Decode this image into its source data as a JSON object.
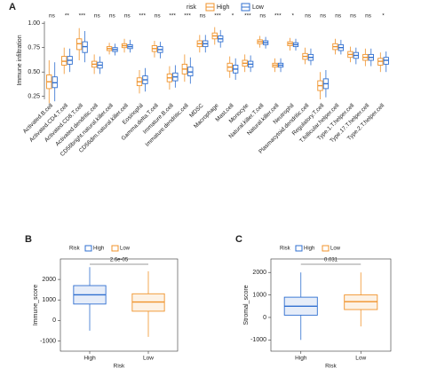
{
  "chart_data": [
    {
      "type": "box",
      "label": "A",
      "ylabel": "Immune infiltration",
      "legend_title": "risk",
      "legend": "top",
      "categories": [
        "Activated.B.cell",
        "Activated.CD4.T.cell",
        "Activated.CD8.T.cell",
        "Activated.dendritic.cell",
        "CD56bright.natural.killer.cell",
        "CD56dim.natural.killer.cell",
        "Eosinophil",
        "Gamma.delta.T.cell",
        "Immature.B.cell",
        "Immature.dendritic.cell",
        "MDSC",
        "Macrophage",
        "Mast.cell",
        "Monocyte",
        "Natural.killer.T.cell",
        "Natural.killer.cell",
        "Neutrophil",
        "Plasmacytoid.dendritic.cell",
        "Regulatory.T.cell",
        "T.follicular.helper.cell",
        "Type.1.T.helper.cell",
        "Type.17.T.helper.cell",
        "Type.2.T.helper.cell"
      ],
      "annotations": [
        "ns",
        "**",
        "***",
        "ns",
        "ns",
        "ns",
        "***",
        "ns",
        "***",
        "***",
        "ns",
        "***",
        "*",
        "***",
        "ns",
        "***",
        "*",
        "ns",
        "ns",
        "ns",
        "ns",
        "ns",
        "*"
      ],
      "ylim": [
        0.22,
        1.02
      ],
      "yticks": [
        0.25,
        {
          "value": 0.5,
          "label": "0.50"
        },
        0.75,
        {
          "value": 1,
          "label": "1.00"
        }
      ],
      "series": [
        {
          "name": "High",
          "color": "#f0932b",
          "low": [
            0.18,
            0.48,
            0.62,
            0.48,
            0.68,
            0.7,
            0.28,
            0.65,
            0.32,
            0.4,
            0.7,
            0.78,
            0.44,
            0.5,
            0.75,
            0.5,
            0.72,
            0.58,
            0.22,
            0.68,
            0.6,
            0.56,
            0.5
          ],
          "q1": [
            0.33,
            0.57,
            0.73,
            0.55,
            0.72,
            0.75,
            0.36,
            0.71,
            0.4,
            0.48,
            0.76,
            0.84,
            0.51,
            0.56,
            0.79,
            0.55,
            0.77,
            0.63,
            0.31,
            0.73,
            0.65,
            0.62,
            0.57
          ],
          "median": [
            0.4,
            0.61,
            0.79,
            0.58,
            0.74,
            0.77,
            0.4,
            0.74,
            0.44,
            0.53,
            0.79,
            0.87,
            0.55,
            0.59,
            0.81,
            0.57,
            0.79,
            0.66,
            0.36,
            0.76,
            0.68,
            0.65,
            0.61
          ],
          "q3": [
            0.47,
            0.66,
            0.84,
            0.61,
            0.76,
            0.79,
            0.44,
            0.77,
            0.48,
            0.58,
            0.82,
            0.9,
            0.59,
            0.62,
            0.83,
            0.59,
            0.81,
            0.69,
            0.41,
            0.79,
            0.71,
            0.68,
            0.64
          ],
          "high": [
            0.62,
            0.75,
            0.95,
            0.68,
            0.8,
            0.84,
            0.52,
            0.82,
            0.56,
            0.68,
            0.88,
            0.96,
            0.66,
            0.68,
            0.87,
            0.64,
            0.85,
            0.75,
            0.5,
            0.84,
            0.76,
            0.74,
            0.7
          ]
        },
        {
          "name": "Low",
          "color": "#2f6fd0",
          "low": [
            0.2,
            0.5,
            0.6,
            0.48,
            0.67,
            0.7,
            0.3,
            0.64,
            0.34,
            0.38,
            0.7,
            0.75,
            0.42,
            0.5,
            0.74,
            0.5,
            0.72,
            0.57,
            0.24,
            0.68,
            0.58,
            0.56,
            0.5
          ],
          "q1": [
            0.34,
            0.58,
            0.7,
            0.54,
            0.71,
            0.74,
            0.38,
            0.7,
            0.41,
            0.46,
            0.76,
            0.81,
            0.49,
            0.55,
            0.78,
            0.55,
            0.76,
            0.62,
            0.33,
            0.72,
            0.64,
            0.62,
            0.58
          ],
          "median": [
            0.39,
            0.62,
            0.76,
            0.57,
            0.73,
            0.76,
            0.42,
            0.73,
            0.45,
            0.5,
            0.79,
            0.84,
            0.53,
            0.58,
            0.8,
            0.57,
            0.78,
            0.65,
            0.38,
            0.75,
            0.67,
            0.65,
            0.62
          ],
          "q3": [
            0.45,
            0.66,
            0.81,
            0.6,
            0.75,
            0.78,
            0.46,
            0.76,
            0.49,
            0.55,
            0.82,
            0.87,
            0.57,
            0.61,
            0.82,
            0.59,
            0.8,
            0.68,
            0.43,
            0.78,
            0.7,
            0.68,
            0.65
          ],
          "high": [
            0.6,
            0.74,
            0.92,
            0.66,
            0.79,
            0.83,
            0.54,
            0.81,
            0.57,
            0.65,
            0.88,
            0.93,
            0.64,
            0.67,
            0.86,
            0.64,
            0.84,
            0.74,
            0.52,
            0.83,
            0.75,
            0.74,
            0.71
          ]
        }
      ]
    },
    {
      "type": "box",
      "label": "B",
      "ylabel": "Immune_score",
      "xlabel": "Risk",
      "legend_title": "Risk",
      "legend": "top",
      "p_value": "2.6e-05",
      "categories": [
        "High",
        "Low"
      ],
      "colors": [
        "#2f6fd0",
        "#f0932b"
      ],
      "ylim": [
        -1500,
        3000
      ],
      "yticks": [
        -1000,
        0,
        1000,
        2000
      ],
      "low": [
        -500,
        -800
      ],
      "q1": [
        800,
        450
      ],
      "median": [
        1250,
        900
      ],
      "q3": [
        1700,
        1300
      ],
      "high": [
        2600,
        2400
      ]
    },
    {
      "type": "box",
      "label": "C",
      "ylabel": "Stromal_score",
      "xlabel": "Risk",
      "legend_title": "Risk",
      "legend": "top",
      "p_value": "0.031",
      "categories": [
        "High",
        "Low"
      ],
      "colors": [
        "#2f6fd0",
        "#f0932b"
      ],
      "ylim": [
        -1500,
        2600
      ],
      "yticks": [
        -1000,
        0,
        1000,
        2000
      ],
      "low": [
        -1000,
        -400
      ],
      "q1": [
        100,
        350
      ],
      "median": [
        500,
        700
      ],
      "q3": [
        900,
        1000
      ],
      "high": [
        2000,
        2000
      ]
    }
  ]
}
